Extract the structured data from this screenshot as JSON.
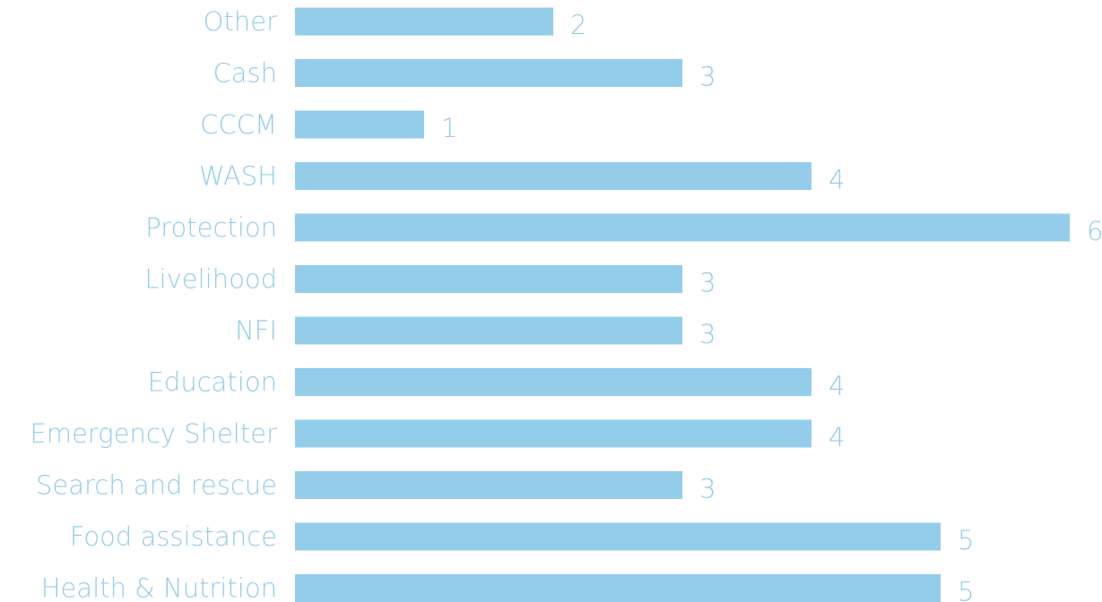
{
  "chart_data": {
    "type": "bar",
    "orientation": "horizontal",
    "categories": [
      "Other",
      "Cash",
      "CCCM",
      "WASH",
      "Protection",
      "Livelihood",
      "NFI",
      "Education",
      "Emergency Shelter",
      "Search and rescue",
      "Food assistance",
      "Health & Nutrition"
    ],
    "values": [
      2,
      3,
      1,
      4,
      6,
      3,
      3,
      4,
      4,
      3,
      5,
      5
    ],
    "data_labels": [
      "2",
      "3",
      "1",
      "4",
      "6",
      "3",
      "3",
      "4",
      "4",
      "3",
      "5",
      "5"
    ],
    "title": "",
    "xlabel": "",
    "ylabel": "",
    "xlim": [
      0,
      6
    ],
    "grid": false,
    "legend": "none",
    "colors": {
      "bar": "#93cdea",
      "category_text": "#93cdea",
      "value_text": "#93cdea"
    }
  }
}
